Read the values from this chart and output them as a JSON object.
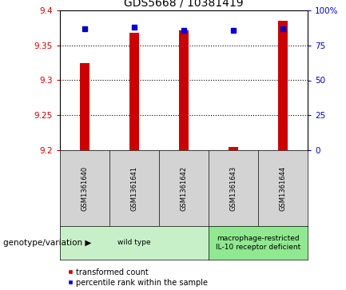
{
  "title": "GDS5668 / 10381419",
  "samples": [
    "GSM1361640",
    "GSM1361641",
    "GSM1361642",
    "GSM1361643",
    "GSM1361644"
  ],
  "red_values": [
    9.325,
    9.368,
    9.371,
    9.204,
    9.385
  ],
  "blue_values": [
    87.0,
    88.0,
    86.0,
    86.0,
    87.0
  ],
  "ylim_left": [
    9.2,
    9.4
  ],
  "ylim_right": [
    0,
    100
  ],
  "left_ticks": [
    9.2,
    9.25,
    9.3,
    9.35,
    9.4
  ],
  "right_ticks": [
    0,
    25,
    50,
    75,
    100
  ],
  "right_tick_labels": [
    "0",
    "25",
    "50",
    "75",
    "100%"
  ],
  "grid_lines": [
    9.25,
    9.3,
    9.35
  ],
  "groups": [
    {
      "label": "wild type",
      "samples": [
        0,
        1,
        2
      ],
      "color": "#c8f0c8"
    },
    {
      "label": "macrophage-restricted\nIL-10 receptor deficient",
      "samples": [
        3,
        4
      ],
      "color": "#90e890"
    }
  ],
  "legend_red": "transformed count",
  "legend_blue": "percentile rank within the sample",
  "genotype_label": "genotype/variation",
  "bar_color": "#cc0000",
  "point_color": "#0000cc",
  "background_color": "#ffffff",
  "title_fontsize": 10,
  "tick_fontsize": 7.5,
  "sample_fontsize": 6.0,
  "group_fontsize": 6.5,
  "legend_fontsize": 7.0,
  "genotype_fontsize": 7.5,
  "bar_width": 0.18
}
